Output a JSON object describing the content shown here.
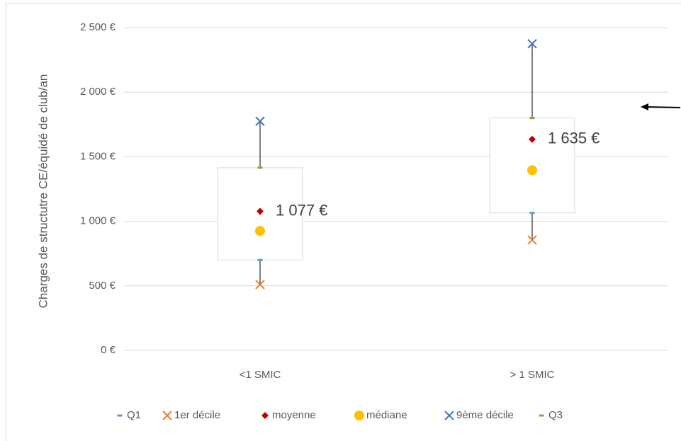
{
  "chart_data": {
    "type": "box",
    "y_label": "Charges de structutre CE/équidé de club/an",
    "categories": [
      "<1 SMIC",
      "> 1 SMIC"
    ],
    "ylim": [
      0,
      2500
    ],
    "yticks": [
      {
        "value": 0,
        "label": "0 €"
      },
      {
        "value": 500,
        "label": "500 €"
      },
      {
        "value": 1000,
        "label": "1 000 €"
      },
      {
        "value": 1500,
        "label": "1 500 €"
      },
      {
        "value": 2000,
        "label": "2 000 €"
      },
      {
        "value": 2500,
        "label": "2 500 €"
      }
    ],
    "grid": true,
    "legend": "bottom",
    "series": [
      {
        "name": "Q1",
        "color": "#5b9bd5",
        "marker": "dash",
        "values": [
          700,
          1065
        ]
      },
      {
        "name": "1er décile",
        "color": "#ed7d31",
        "marker": "x",
        "values": [
          510,
          855
        ]
      },
      {
        "name": "moyenne",
        "color": "#c00000",
        "marker": "diamond",
        "values": [
          1077,
          1635
        ],
        "value_labels": [
          "1 077 €",
          "1 635 €"
        ]
      },
      {
        "name": "médiane",
        "color": "#ffc000",
        "marker": "circle",
        "values": [
          925,
          1395
        ]
      },
      {
        "name": "9ème décile",
        "color": "#4472c4",
        "marker": "x",
        "values": [
          1775,
          2375
        ]
      },
      {
        "name": "Q3",
        "color": "#70ad47",
        "marker": "dash",
        "values": [
          1415,
          1800
        ]
      }
    ]
  }
}
